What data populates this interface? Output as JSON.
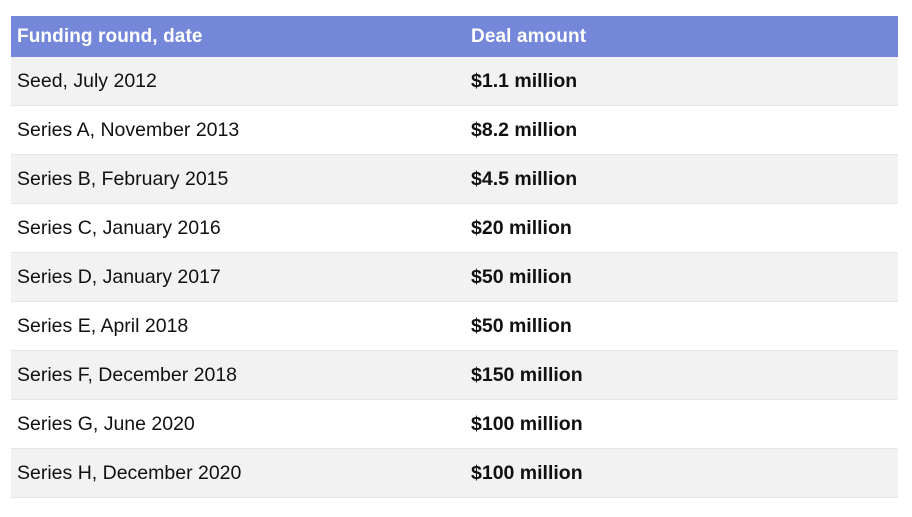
{
  "table": {
    "headers": {
      "round": "Funding round, date",
      "amount": "Deal amount"
    },
    "rows": [
      {
        "round": "Seed, July 2012",
        "amount": "$1.1 million"
      },
      {
        "round": "Series A, November 2013",
        "amount": "$8.2 million"
      },
      {
        "round": "Series B, February 2015",
        "amount": "$4.5 million"
      },
      {
        "round": "Series C, January 2016",
        "amount": "$20 million"
      },
      {
        "round": "Series D, January 2017",
        "amount": "$50 million"
      },
      {
        "round": "Series E, April 2018",
        "amount": "$50 million"
      },
      {
        "round": "Series F, December 2018",
        "amount": "$150 million"
      },
      {
        "round": "Series G, June 2020",
        "amount": "$100 million"
      },
      {
        "round": "Series H, December 2020",
        "amount": "$100 million"
      }
    ]
  },
  "colors": {
    "header_bg": "#7587d9",
    "row_alt_bg": "#f2f2f2",
    "row_plain_bg": "#ffffff"
  }
}
